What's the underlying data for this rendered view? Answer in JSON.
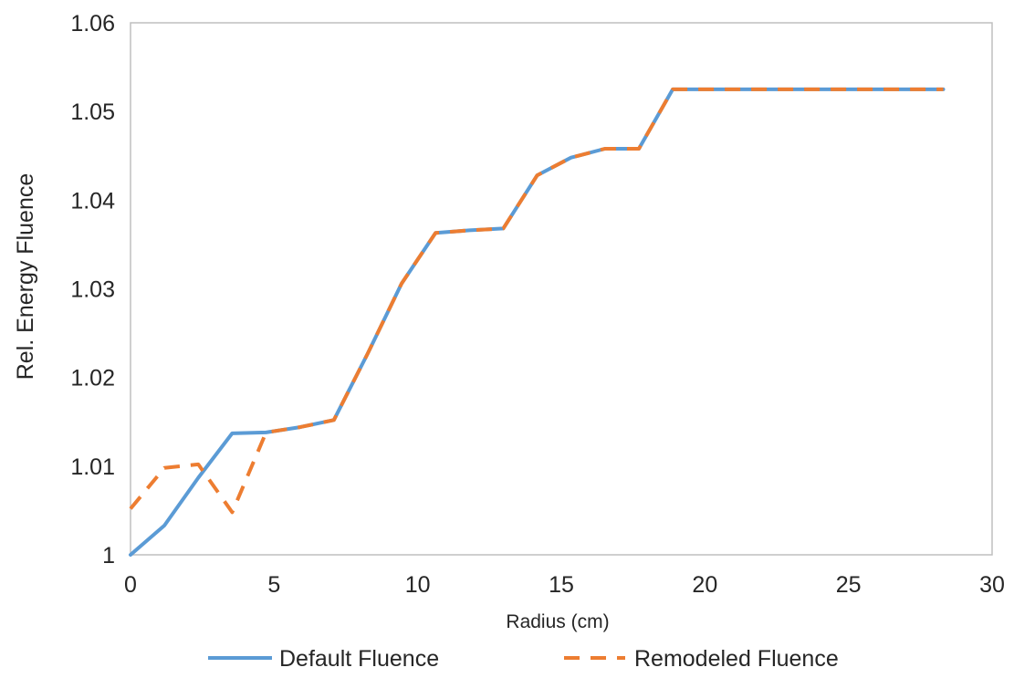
{
  "chart_data": {
    "type": "line",
    "title": "",
    "xlabel": "Radius (cm)",
    "ylabel": "Rel. Energy Fluence",
    "xlim": [
      0,
      30
    ],
    "ylim": [
      1.0,
      1.06
    ],
    "xticks": [
      0,
      5,
      10,
      15,
      20,
      25,
      30
    ],
    "yticks": [
      1,
      1.01,
      1.02,
      1.03,
      1.04,
      1.05,
      1.06
    ],
    "xtick_labels": [
      "0",
      "5",
      "10",
      "15",
      "20",
      "25",
      "30"
    ],
    "ytick_labels": [
      "1",
      "1.01",
      "1.02",
      "1.03",
      "1.04",
      "1.05",
      "1.06"
    ],
    "grid": false,
    "legend_position": "bottom",
    "series": [
      {
        "name": "Default Fluence",
        "color": "#5b9bd5",
        "style": "solid",
        "x": [
          0,
          1.18,
          2.36,
          3.54,
          4.72,
          5.9,
          7.08,
          8.26,
          9.44,
          10.62,
          11.8,
          12.98,
          14.16,
          15.34,
          16.52,
          17.7,
          18.88,
          20.06,
          21.24,
          22.42,
          23.6,
          24.78,
          25.96,
          27.14,
          28.3
        ],
        "y": [
          1.0,
          1.0033,
          1.0087,
          1.0137,
          1.0138,
          1.0144,
          1.0152,
          1.0227,
          1.0306,
          1.0363,
          1.0366,
          1.0368,
          1.0428,
          1.0448,
          1.0458,
          1.0458,
          1.0525,
          1.0525,
          1.0525,
          1.0525,
          1.0525,
          1.0525,
          1.0525,
          1.0525,
          1.0525
        ]
      },
      {
        "name": "Remodeled Fluence",
        "color": "#ed7d31",
        "style": "dashed",
        "x": [
          0,
          1.18,
          2.36,
          3.54,
          4.72,
          5.9,
          7.08,
          8.26,
          9.44,
          10.62,
          11.8,
          12.98,
          14.16,
          15.34,
          16.52,
          17.7,
          18.88,
          20.06,
          21.24,
          22.42,
          23.6,
          24.78,
          25.96,
          27.14,
          28.3
        ],
        "y": [
          1.0052,
          1.0098,
          1.0102,
          1.0048,
          1.0138,
          1.0144,
          1.0152,
          1.0227,
          1.0306,
          1.0363,
          1.0366,
          1.0368,
          1.0428,
          1.0448,
          1.0458,
          1.0458,
          1.0525,
          1.0525,
          1.0525,
          1.0525,
          1.0525,
          1.0525,
          1.0525,
          1.0525,
          1.0525
        ]
      }
    ]
  }
}
